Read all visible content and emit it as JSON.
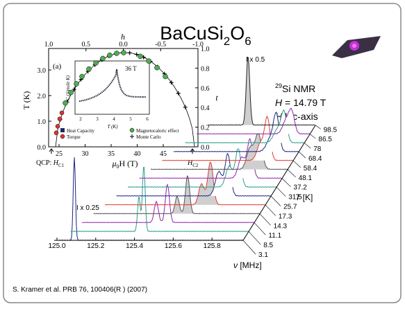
{
  "title": {
    "base": "BaCuSi",
    "sub1": "2",
    "mid": "O",
    "sub2": "6"
  },
  "phase_diagram": {
    "panel": "(a)",
    "top_label": "h",
    "top_ticks": [
      "1.0",
      "0.5",
      "0.0",
      "-0.5",
      "-1.0"
    ],
    "left_label": "T (K)",
    "left_ticks": [
      "0.0",
      "1.0",
      "2.0",
      "3.0"
    ],
    "right_label": "t",
    "right_ticks": [
      "0.0",
      "0.2",
      "0.4",
      "0.6",
      "0.8",
      "1.0"
    ],
    "bottom_label": {
      "mu": "μ",
      "sub": "0",
      "rest": "H (T)"
    },
    "bottom_ticks": [
      "25",
      "30",
      "35",
      "40",
      "45"
    ],
    "inset": {
      "field": "36 T",
      "x_label": "T (K)",
      "y_label": "C (J/mole K)",
      "x_ticks": [
        "2",
        "3",
        "4",
        "5",
        "6"
      ]
    },
    "legend": [
      "Heat Capacity",
      "Magnetocaloric effect",
      "Torque",
      "Monte Carlo"
    ],
    "qcp": {
      "prefix": "QCP: ",
      "h": "H",
      "sub": "C1"
    },
    "hc2": {
      "h": "H",
      "sub": "C2"
    }
  },
  "nmr": {
    "isotope": "29",
    "label": "Si NMR",
    "field_symbol": "H",
    "field_value": " = 14.79 T",
    "orient_symbol": "H",
    "orient_text": " || c-axis",
    "scale_top": "I x 0.5",
    "scale_bottom": "I x 0.25",
    "freq_ticks": [
      "125.0",
      "125.2",
      "125.4",
      "125.6",
      "125.8"
    ],
    "freq_label": {
      "symbol": "ν",
      "unit": " [MHz]"
    },
    "temp_label": {
      "symbol": "T",
      "unit": " [K]"
    },
    "temperatures": [
      "98.5",
      "86.5",
      "78",
      "68.4",
      "58.4",
      "48.1",
      "37.2",
      "31.5",
      "25.7",
      "17.3",
      "14.3",
      "11.1",
      "8.5",
      "3.1"
    ]
  },
  "citation": "S. Kramer et al. PRB 76, 100406(R ) (2007)"
}
